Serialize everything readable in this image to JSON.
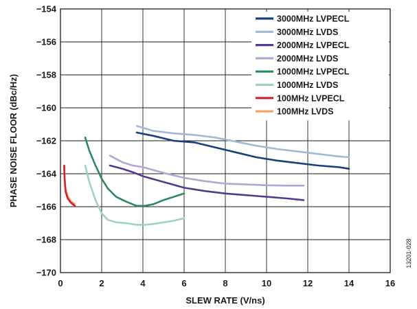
{
  "figure_id": "13201-028",
  "chart_data": {
    "type": "line",
    "title": "",
    "xlabel": "SLEW RATE (V/ns)",
    "ylabel": "PHASE NOISE FLOOR (dBc/Hz)",
    "xlim": [
      0,
      16
    ],
    "ylim": [
      -170,
      -154
    ],
    "x_ticks": [
      0,
      2,
      4,
      6,
      8,
      10,
      12,
      14,
      16
    ],
    "y_ticks": [
      -154,
      -156,
      -158,
      -160,
      -162,
      -164,
      -166,
      -168,
      -170
    ],
    "grid": true,
    "legend_position": "top-right",
    "series": [
      {
        "name": "3000MHz LVPECL",
        "color": "#1b3f7a",
        "x": [
          3.7,
          4.5,
          5.5,
          6.5,
          7.5,
          8.5,
          9.5,
          10.5,
          11.5,
          12.5,
          13.5,
          14.0
        ],
        "y": [
          -161.5,
          -161.7,
          -162.0,
          -162.1,
          -162.4,
          -162.7,
          -163.0,
          -163.2,
          -163.35,
          -163.5,
          -163.6,
          -163.7
        ]
      },
      {
        "name": "3000MHz LVDS",
        "color": "#a3b8d6",
        "x": [
          3.7,
          4.5,
          5.5,
          6.5,
          7.5,
          8.5,
          9.5,
          10.5,
          11.5,
          12.5,
          13.5,
          14.0
        ],
        "y": [
          -161.1,
          -161.4,
          -161.55,
          -161.65,
          -161.8,
          -162.05,
          -162.3,
          -162.5,
          -162.65,
          -162.8,
          -162.95,
          -163.0
        ]
      },
      {
        "name": "2000MHz LVPECL",
        "color": "#553a8c",
        "x": [
          2.4,
          3.0,
          3.5,
          4.0,
          5.0,
          6.0,
          7.0,
          8.0,
          9.0,
          10.0,
          11.0,
          11.8
        ],
        "y": [
          -163.5,
          -163.7,
          -163.9,
          -164.15,
          -164.5,
          -164.85,
          -165.05,
          -165.2,
          -165.3,
          -165.4,
          -165.5,
          -165.6
        ]
      },
      {
        "name": "2000MHz LVDS",
        "color": "#b4a5d2",
        "x": [
          2.4,
          3.0,
          3.5,
          4.0,
          5.0,
          6.0,
          7.0,
          8.0,
          9.0,
          10.0,
          11.0,
          11.8
        ],
        "y": [
          -162.9,
          -163.3,
          -163.5,
          -163.6,
          -163.95,
          -164.25,
          -164.45,
          -164.6,
          -164.65,
          -164.7,
          -164.72,
          -164.72
        ]
      },
      {
        "name": "1000MHz LVPECL",
        "color": "#2b8a5c",
        "x": [
          1.2,
          1.4,
          1.7,
          2.0,
          2.3,
          2.7,
          3.2,
          3.7,
          4.1,
          4.5,
          5.0,
          5.5,
          6.0
        ],
        "y": [
          -161.8,
          -162.6,
          -163.5,
          -164.3,
          -164.9,
          -165.4,
          -165.7,
          -165.95,
          -165.95,
          -165.85,
          -165.6,
          -165.4,
          -165.2
        ]
      },
      {
        "name": "1000MHz LVDS",
        "color": "#9fd3b8",
        "x": [
          1.2,
          1.4,
          1.7,
          2.0,
          2.3,
          2.7,
          3.2,
          3.7,
          4.1,
          4.5,
          5.0,
          5.5,
          6.0
        ],
        "y": [
          -163.5,
          -164.5,
          -165.6,
          -166.4,
          -166.8,
          -166.95,
          -167.0,
          -167.1,
          -167.1,
          -167.05,
          -166.95,
          -166.85,
          -166.7
        ]
      },
      {
        "name": "100MHz LVPECL",
        "color": "#d4202f",
        "x": [
          0.18,
          0.2,
          0.25,
          0.35,
          0.5,
          0.7
        ],
        "y": [
          -163.5,
          -164.3,
          -165.1,
          -165.5,
          -165.75,
          -165.95
        ]
      },
      {
        "name": "100MHz LVDS",
        "color": "#f4a46b",
        "x": [
          0.18,
          0.2,
          0.25,
          0.35,
          0.5,
          0.7
        ],
        "y": [
          -163.5,
          -164.2,
          -164.9,
          -165.35,
          -165.65,
          -165.85
        ]
      }
    ]
  }
}
